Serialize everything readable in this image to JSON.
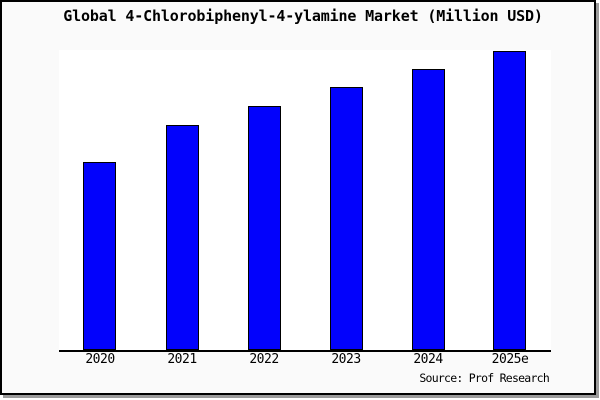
{
  "window": {
    "background": "#fafafa",
    "plot_background": "#ffffff",
    "border_color": "#000000",
    "shadow_color": "#9b9b9b"
  },
  "chart_data": {
    "type": "bar",
    "title": "Global 4-Chlorobiphenyl-4-ylamine Market (Million USD)",
    "categories": [
      "2020",
      "2021",
      "2022",
      "2023",
      "2024",
      "2025e"
    ],
    "values": [
      188,
      225,
      244,
      263,
      281,
      299
    ],
    "value_note": "relative bar heights; y-axis unlabeled in source image",
    "xlabel": "",
    "ylabel": "",
    "ylim": [
      0,
      300
    ],
    "grid": false,
    "legend": false,
    "bar_color": "#0202fc",
    "bar_edge_color": "#000000",
    "axis_color": "#000000",
    "source_note": "Source: Prof Research"
  }
}
